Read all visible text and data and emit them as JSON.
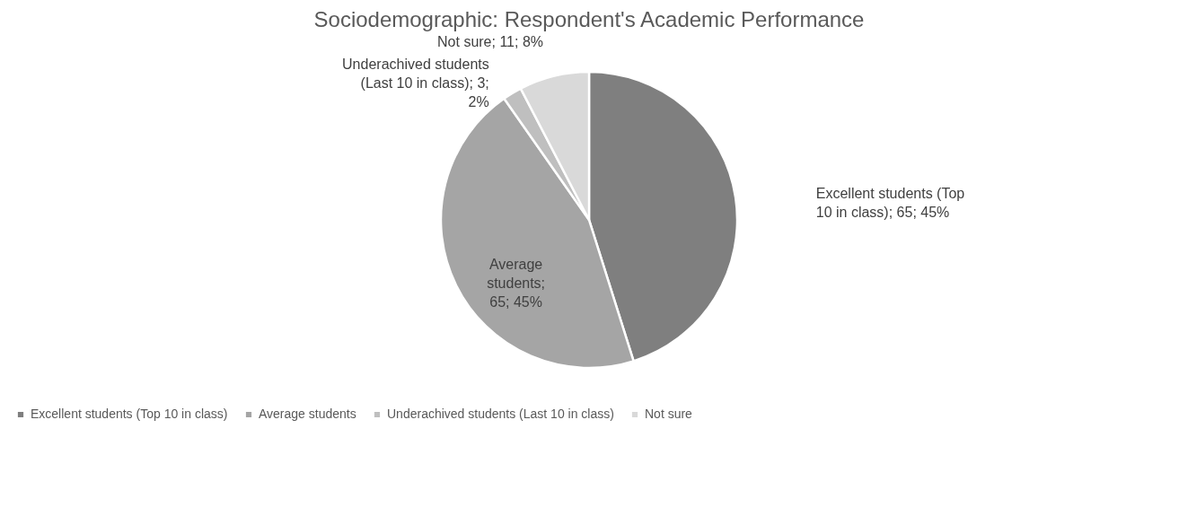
{
  "chart_data": {
    "type": "pie",
    "title": "Sociodemographic: Respondent's Academic Performance",
    "categories": [
      "Excellent students (Top 10 in class)",
      "Average students",
      "Underachived students (Last 10 in class)",
      "Not sure"
    ],
    "values": [
      65,
      65,
      3,
      11
    ],
    "value_labels": [
      "; 65; 45%",
      "; 65; 45%",
      "; 3; 2%",
      "; 11; 8%"
    ],
    "colors": [
      "#7f7f7f",
      "#a5a5a5",
      "#bfbfbf",
      "#d9d9d9"
    ],
    "legend": "bottom"
  }
}
